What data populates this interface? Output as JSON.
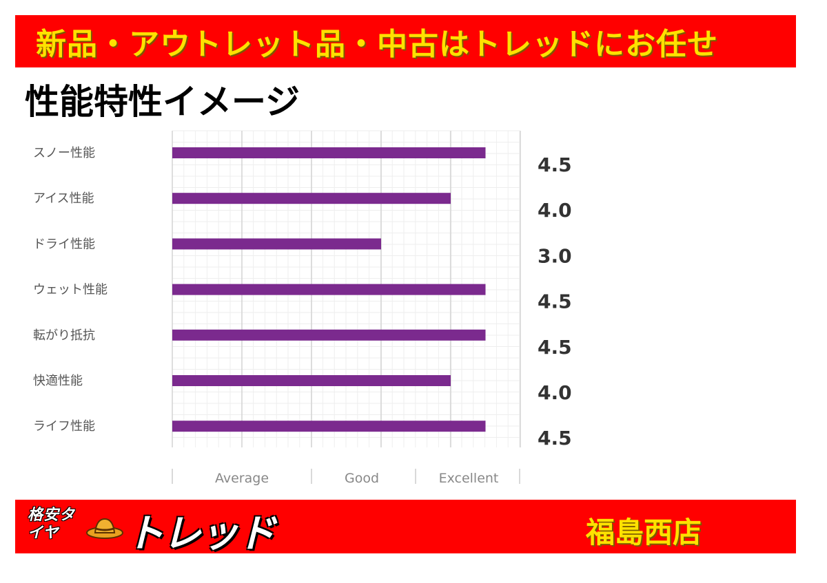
{
  "banner": {
    "text": "新品・アウトレット品・中古はトレッドにお任せ"
  },
  "title": "性能特性イメージ",
  "chart_data": {
    "type": "bar",
    "orientation": "horizontal",
    "categories": [
      "スノー性能",
      "アイス性能",
      "ドライ性能",
      "ウェット性能",
      "転がり抵抗",
      "快適性能",
      "ライフ性能"
    ],
    "values": [
      4.5,
      4.0,
      3.0,
      4.5,
      4.5,
      4.0,
      4.5
    ],
    "value_labels": [
      "4.5",
      "4.0",
      "3.0",
      "4.5",
      "4.5",
      "4.0",
      "4.5"
    ],
    "x_tick_labels": [
      "Average",
      "Good",
      "Excellent"
    ],
    "xlim": [
      0,
      5
    ],
    "grid": true,
    "bar_color": "#7b2a8e"
  },
  "footer": {
    "logo_small": "格安タイヤ",
    "logo_brand": "トレッド",
    "store_name": "福島西店",
    "hat_icon": "cowboy-hat-icon"
  },
  "colors": {
    "banner_bg": "#ff0000",
    "banner_text": "#ffe100",
    "bar": "#7b2a8e"
  }
}
